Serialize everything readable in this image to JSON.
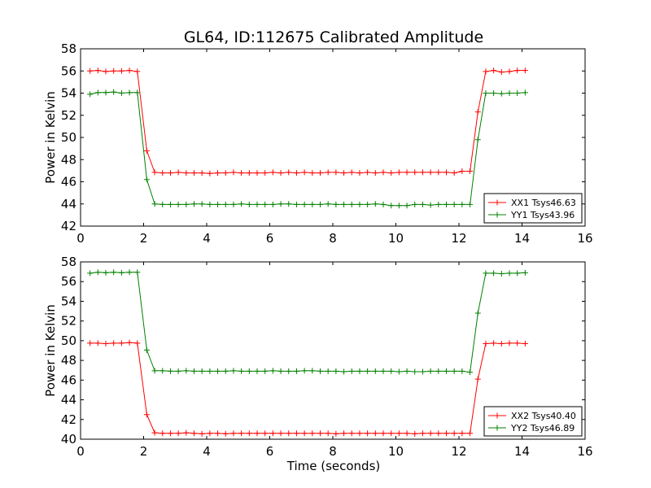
{
  "chart_data": {
    "title": "GL64, ID:112675 Calibrated Amplitude",
    "xlabel": "Time (seconds)",
    "charts": [
      {
        "type": "line",
        "ylabel": "Power in Kelvin",
        "xlim": [
          0,
          16
        ],
        "ylim": [
          42,
          58
        ],
        "xticks": [
          0,
          2,
          4,
          6,
          8,
          10,
          12,
          14,
          16
        ],
        "yticks": [
          42,
          44,
          46,
          48,
          50,
          52,
          54,
          56,
          58
        ],
        "legend": "lower-right",
        "series": [
          {
            "name": "XX1 Tsys46.63",
            "color": "#ff0000",
            "x": [
              0.3,
              0.55,
              0.8,
              1.05,
              1.3,
              1.55,
              1.8,
              2.1,
              2.35,
              2.6,
              2.85,
              3.1,
              3.35,
              3.6,
              3.85,
              4.1,
              4.35,
              4.6,
              4.85,
              5.1,
              5.35,
              5.6,
              5.85,
              6.1,
              6.35,
              6.6,
              6.85,
              7.1,
              7.35,
              7.6,
              7.85,
              8.1,
              8.35,
              8.6,
              8.85,
              9.1,
              9.35,
              9.6,
              9.85,
              10.1,
              10.35,
              10.6,
              10.85,
              11.1,
              11.35,
              11.6,
              11.85,
              12.1,
              12.35,
              12.6,
              12.85,
              13.1,
              13.35,
              13.6,
              13.85,
              14.1
            ],
            "values": [
              56.0,
              56.05,
              55.95,
              56.0,
              56.0,
              56.05,
              55.95,
              48.8,
              46.85,
              46.8,
              46.8,
              46.85,
              46.8,
              46.8,
              46.8,
              46.75,
              46.8,
              46.8,
              46.85,
              46.8,
              46.8,
              46.8,
              46.8,
              46.85,
              46.8,
              46.85,
              46.8,
              46.85,
              46.8,
              46.8,
              46.85,
              46.85,
              46.8,
              46.85,
              46.8,
              46.85,
              46.8,
              46.85,
              46.8,
              46.85,
              46.85,
              46.85,
              46.85,
              46.85,
              46.85,
              46.85,
              46.8,
              46.95,
              46.95,
              52.3,
              55.95,
              56.05,
              55.9,
              55.95,
              56.05,
              56.05
            ]
          },
          {
            "name": "YY1 Tsys43.96",
            "color": "#008000",
            "x": [
              0.3,
              0.55,
              0.8,
              1.05,
              1.3,
              1.55,
              1.8,
              2.1,
              2.35,
              2.6,
              2.85,
              3.1,
              3.35,
              3.6,
              3.85,
              4.1,
              4.35,
              4.6,
              4.85,
              5.1,
              5.35,
              5.6,
              5.85,
              6.1,
              6.35,
              6.6,
              6.85,
              7.1,
              7.35,
              7.6,
              7.85,
              8.1,
              8.35,
              8.6,
              8.85,
              9.1,
              9.35,
              9.6,
              9.85,
              10.1,
              10.35,
              10.6,
              10.85,
              11.1,
              11.35,
              11.6,
              11.85,
              12.1,
              12.35,
              12.6,
              12.85,
              13.1,
              13.35,
              13.6,
              13.85,
              14.1
            ],
            "values": [
              53.9,
              54.05,
              54.05,
              54.1,
              54.0,
              54.05,
              54.05,
              46.2,
              44.0,
              43.95,
              43.95,
              43.95,
              43.95,
              44.0,
              44.0,
              43.95,
              43.95,
              43.95,
              43.95,
              44.0,
              43.95,
              43.95,
              43.95,
              43.95,
              44.0,
              44.0,
              43.95,
              43.95,
              43.95,
              43.95,
              44.0,
              43.95,
              43.95,
              43.95,
              43.95,
              43.95,
              44.0,
              43.95,
              43.85,
              43.85,
              43.85,
              43.95,
              43.95,
              43.9,
              43.95,
              43.95,
              43.95,
              43.95,
              43.95,
              49.8,
              54.0,
              54.0,
              53.95,
              54.0,
              54.0,
              54.05
            ]
          }
        ]
      },
      {
        "type": "line",
        "ylabel": "Power in Kelvin",
        "xlabel": "Time (seconds)",
        "xlim": [
          0,
          16
        ],
        "ylim": [
          40,
          58
        ],
        "xticks": [
          0,
          2,
          4,
          6,
          8,
          10,
          12,
          14,
          16
        ],
        "yticks": [
          40,
          42,
          44,
          46,
          48,
          50,
          52,
          54,
          56,
          58
        ],
        "legend": "lower-right",
        "series": [
          {
            "name": "XX2 Tsys40.40",
            "color": "#ff0000",
            "x": [
              0.3,
              0.55,
              0.8,
              1.05,
              1.3,
              1.55,
              1.8,
              2.1,
              2.35,
              2.6,
              2.85,
              3.1,
              3.35,
              3.6,
              3.85,
              4.1,
              4.35,
              4.6,
              4.85,
              5.1,
              5.35,
              5.6,
              5.85,
              6.1,
              6.35,
              6.6,
              6.85,
              7.1,
              7.35,
              7.6,
              7.85,
              8.1,
              8.35,
              8.6,
              8.85,
              9.1,
              9.35,
              9.6,
              9.85,
              10.1,
              10.35,
              10.6,
              10.85,
              11.1,
              11.35,
              11.6,
              11.85,
              12.1,
              12.35,
              12.6,
              12.85,
              13.1,
              13.35,
              13.6,
              13.85,
              14.1
            ],
            "values": [
              49.75,
              49.75,
              49.7,
              49.75,
              49.75,
              49.8,
              49.75,
              42.5,
              40.65,
              40.6,
              40.6,
              40.6,
              40.65,
              40.6,
              40.55,
              40.6,
              40.6,
              40.55,
              40.6,
              40.6,
              40.6,
              40.6,
              40.6,
              40.6,
              40.6,
              40.6,
              40.6,
              40.6,
              40.6,
              40.6,
              40.6,
              40.55,
              40.6,
              40.6,
              40.6,
              40.6,
              40.6,
              40.6,
              40.6,
              40.6,
              40.6,
              40.55,
              40.6,
              40.6,
              40.6,
              40.6,
              40.6,
              40.6,
              40.6,
              46.1,
              49.7,
              49.75,
              49.7,
              49.75,
              49.75,
              49.7
            ]
          },
          {
            "name": "YY2 Tsys46.89",
            "color": "#008000",
            "x": [
              0.3,
              0.55,
              0.8,
              1.05,
              1.3,
              1.55,
              1.8,
              2.1,
              2.35,
              2.6,
              2.85,
              3.1,
              3.35,
              3.6,
              3.85,
              4.1,
              4.35,
              4.6,
              4.85,
              5.1,
              5.35,
              5.6,
              5.85,
              6.1,
              6.35,
              6.6,
              6.85,
              7.1,
              7.35,
              7.6,
              7.85,
              8.1,
              8.35,
              8.6,
              8.85,
              9.1,
              9.35,
              9.6,
              9.85,
              10.1,
              10.35,
              10.6,
              10.85,
              11.1,
              11.35,
              11.6,
              11.85,
              12.1,
              12.35,
              12.6,
              12.85,
              13.1,
              13.35,
              13.6,
              13.85,
              14.1
            ],
            "values": [
              56.85,
              56.95,
              56.9,
              56.95,
              56.9,
              56.95,
              56.95,
              49.05,
              46.95,
              46.95,
              46.9,
              46.9,
              46.95,
              46.9,
              46.9,
              46.9,
              46.9,
              46.9,
              46.95,
              46.9,
              46.9,
              46.9,
              46.9,
              46.95,
              46.9,
              46.9,
              46.9,
              46.95,
              46.95,
              46.9,
              46.9,
              46.9,
              46.85,
              46.9,
              46.9,
              46.9,
              46.9,
              46.9,
              46.9,
              46.85,
              46.9,
              46.85,
              46.85,
              46.9,
              46.9,
              46.9,
              46.9,
              46.9,
              46.8,
              52.8,
              56.85,
              56.85,
              56.8,
              56.85,
              56.85,
              56.9
            ]
          }
        ]
      }
    ]
  }
}
